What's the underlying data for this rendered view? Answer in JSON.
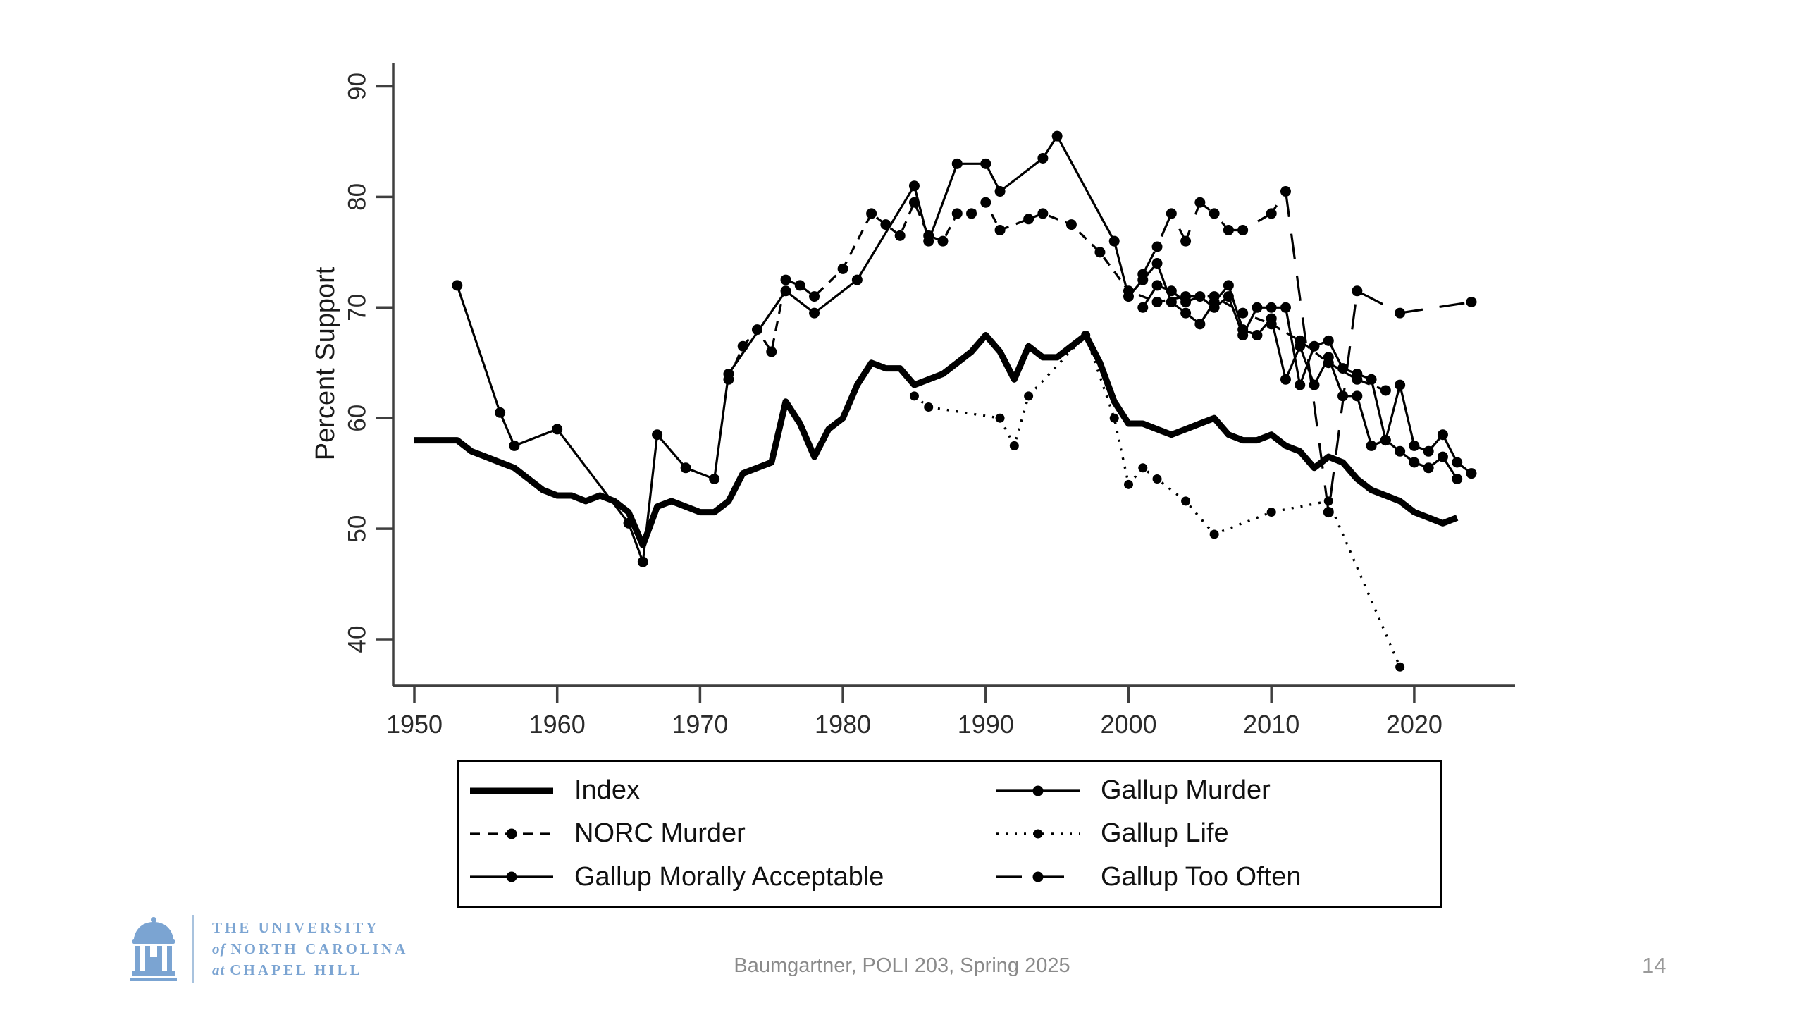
{
  "chart": {
    "ylabel": "Percent Support",
    "y_ticks": [
      40,
      50,
      60,
      70,
      80,
      90
    ],
    "x_ticks": [
      1950,
      1960,
      1970,
      1980,
      1990,
      2000,
      2010,
      2020
    ],
    "axis_color": "#3f3f3f",
    "series_color": "#000000"
  },
  "chart_data": {
    "type": "line",
    "title": "",
    "xlabel": "",
    "ylabel": "Percent Support",
    "xlim": [
      1948.5,
      2027.5
    ],
    "ylim": [
      36.5,
      91.5
    ],
    "x_ticks": [
      1950,
      1960,
      1970,
      1980,
      1990,
      2000,
      2010,
      2020
    ],
    "y_ticks": [
      40,
      50,
      60,
      70,
      80,
      90
    ],
    "grid": false,
    "legend_position": "bottom",
    "series": [
      {
        "name": "Index",
        "style": "thick-solid",
        "markers": false,
        "points": [
          [
            1950,
            58
          ],
          [
            1951,
            58
          ],
          [
            1952,
            58
          ],
          [
            1953,
            58
          ],
          [
            1954,
            57
          ],
          [
            1955,
            56.5
          ],
          [
            1956,
            56
          ],
          [
            1957,
            55.5
          ],
          [
            1958,
            54.5
          ],
          [
            1959,
            53.5
          ],
          [
            1960,
            53
          ],
          [
            1961,
            53
          ],
          [
            1962,
            52.5
          ],
          [
            1963,
            53
          ],
          [
            1964,
            52.5
          ],
          [
            1965,
            51.5
          ],
          [
            1966,
            48.5
          ],
          [
            1967,
            52
          ],
          [
            1968,
            52.5
          ],
          [
            1969,
            52
          ],
          [
            1970,
            51.5
          ],
          [
            1971,
            51.5
          ],
          [
            1972,
            52.5
          ],
          [
            1973,
            55
          ],
          [
            1974,
            55.5
          ],
          [
            1975,
            56
          ],
          [
            1976,
            61.5
          ],
          [
            1977,
            59.5
          ],
          [
            1978,
            56.5
          ],
          [
            1979,
            59
          ],
          [
            1980,
            60
          ],
          [
            1981,
            63
          ],
          [
            1982,
            65
          ],
          [
            1983,
            64.5
          ],
          [
            1984,
            64.5
          ],
          [
            1985,
            63
          ],
          [
            1986,
            63.5
          ],
          [
            1987,
            64
          ],
          [
            1988,
            65
          ],
          [
            1989,
            66
          ],
          [
            1990,
            67.5
          ],
          [
            1991,
            66
          ],
          [
            1992,
            63.5
          ],
          [
            1993,
            66.5
          ],
          [
            1994,
            65.5
          ],
          [
            1995,
            65.5
          ],
          [
            1996,
            66.5
          ],
          [
            1997,
            67.5
          ],
          [
            1998,
            65
          ],
          [
            1999,
            61.5
          ],
          [
            2000,
            59.5
          ],
          [
            2001,
            59.5
          ],
          [
            2002,
            59
          ],
          [
            2003,
            58.5
          ],
          [
            2004,
            59
          ],
          [
            2005,
            59.5
          ],
          [
            2006,
            60
          ],
          [
            2007,
            58.5
          ],
          [
            2008,
            58
          ],
          [
            2009,
            58
          ],
          [
            2010,
            58.5
          ],
          [
            2011,
            57.5
          ],
          [
            2012,
            57
          ],
          [
            2013,
            55.5
          ],
          [
            2014,
            56.5
          ],
          [
            2015,
            56
          ],
          [
            2016,
            54.5
          ],
          [
            2017,
            53.5
          ],
          [
            2018,
            53
          ],
          [
            2019,
            52.5
          ],
          [
            2020,
            51.5
          ],
          [
            2021,
            51
          ],
          [
            2022,
            50.5
          ],
          [
            2023,
            51
          ]
        ]
      },
      {
        "name": "NORC Murder",
        "style": "dashed",
        "markers": true,
        "points": [
          [
            1972,
            63.5
          ],
          [
            1973,
            66.5
          ],
          [
            1974,
            68
          ],
          [
            1975,
            66
          ],
          [
            1976,
            72.5
          ],
          [
            1977,
            72
          ],
          [
            1978,
            71
          ],
          [
            1980,
            73.5
          ],
          [
            1982,
            78.5
          ],
          [
            1983,
            77.5
          ],
          [
            1984,
            76.5
          ],
          [
            1985,
            79.5
          ],
          [
            1986,
            76.5
          ],
          [
            1987,
            76
          ],
          [
            1988,
            78.5
          ],
          [
            1989,
            78.5
          ],
          [
            1990,
            79.5
          ],
          [
            1991,
            77
          ],
          [
            1993,
            78
          ],
          [
            1994,
            78.5
          ],
          [
            1996,
            77.5
          ],
          [
            1998,
            75
          ],
          [
            2000,
            71.5
          ],
          [
            2002,
            70.5
          ],
          [
            2004,
            71
          ],
          [
            2006,
            71
          ],
          [
            2008,
            69.5
          ],
          [
            2010,
            68.5
          ],
          [
            2012,
            67
          ],
          [
            2014,
            65
          ],
          [
            2016,
            63.5
          ],
          [
            2018,
            62.5
          ]
        ]
      },
      {
        "name": "Gallup Morally Acceptable",
        "style": "thin-solid",
        "markers": true,
        "points": [
          [
            2001,
            70
          ],
          [
            2002,
            72
          ],
          [
            2003,
            71.5
          ],
          [
            2004,
            70.5
          ],
          [
            2005,
            71
          ],
          [
            2006,
            70
          ],
          [
            2007,
            71
          ],
          [
            2008,
            67.5
          ],
          [
            2009,
            70
          ],
          [
            2010,
            70
          ],
          [
            2011,
            70
          ],
          [
            2012,
            63
          ],
          [
            2013,
            66.5
          ],
          [
            2014,
            67
          ],
          [
            2015,
            64.5
          ],
          [
            2016,
            64
          ],
          [
            2017,
            63.5
          ],
          [
            2018,
            58
          ],
          [
            2019,
            63
          ],
          [
            2020,
            57.5
          ],
          [
            2021,
            57
          ],
          [
            2022,
            58.5
          ],
          [
            2023,
            56
          ],
          [
            2024,
            55
          ]
        ]
      },
      {
        "name": "Gallup Murder",
        "style": "thin-solid",
        "markers": true,
        "points": [
          [
            1953,
            72
          ],
          [
            1956,
            60.5
          ],
          [
            1957,
            57.5
          ],
          [
            1960,
            59
          ],
          [
            1965,
            50.5
          ],
          [
            1966,
            47
          ],
          [
            1967,
            58.5
          ],
          [
            1969,
            55.5
          ],
          [
            1971,
            54.5
          ],
          [
            1972,
            64
          ],
          [
            1976,
            71.5
          ],
          [
            1978,
            69.5
          ],
          [
            1981,
            72.5
          ],
          [
            1985,
            81
          ],
          [
            1986,
            76
          ],
          [
            1988,
            83
          ],
          [
            1990,
            83
          ],
          [
            1991,
            80.5
          ],
          [
            1994,
            83.5
          ],
          [
            1995,
            85.5
          ],
          [
            1999,
            76
          ],
          [
            2000,
            71
          ],
          [
            2001,
            72.5
          ],
          [
            2002,
            74
          ],
          [
            2003,
            70.5
          ],
          [
            2004,
            69.5
          ],
          [
            2005,
            68.5
          ],
          [
            2006,
            70.5
          ],
          [
            2007,
            72
          ],
          [
            2008,
            68
          ],
          [
            2009,
            67.5
          ],
          [
            2010,
            69
          ],
          [
            2011,
            63.5
          ],
          [
            2012,
            66.5
          ],
          [
            2013,
            63
          ],
          [
            2014,
            65.5
          ],
          [
            2015,
            62
          ],
          [
            2016,
            62
          ],
          [
            2017,
            57.5
          ],
          [
            2018,
            58
          ],
          [
            2019,
            57
          ],
          [
            2020,
            56
          ],
          [
            2021,
            55.5
          ],
          [
            2022,
            56.5
          ],
          [
            2023,
            54.5
          ]
        ]
      },
      {
        "name": "Gallup Life",
        "style": "dotted",
        "markers": true,
        "points": [
          [
            1985,
            62
          ],
          [
            1986,
            61
          ],
          [
            1991,
            60
          ],
          [
            1992,
            57.5
          ],
          [
            1993,
            62
          ],
          [
            1997,
            67.5
          ],
          [
            1999,
            60
          ],
          [
            2000,
            54
          ],
          [
            2001,
            55.5
          ],
          [
            2002,
            54.5
          ],
          [
            2004,
            52.5
          ],
          [
            2006,
            49.5
          ],
          [
            2010,
            51.5
          ],
          [
            2014,
            52.5
          ],
          [
            2019,
            37.5
          ]
        ]
      },
      {
        "name": "Gallup Too Often",
        "style": "long-dash",
        "markers": true,
        "points": [
          [
            2001,
            73
          ],
          [
            2002,
            75.5
          ],
          [
            2003,
            78.5
          ],
          [
            2004,
            76
          ],
          [
            2005,
            79.5
          ],
          [
            2006,
            78.5
          ],
          [
            2007,
            77
          ],
          [
            2008,
            77
          ],
          [
            2010,
            78.5
          ],
          [
            2011,
            80.5
          ],
          [
            2014,
            51.5
          ],
          [
            2016,
            71.5
          ],
          [
            2019,
            69.5
          ],
          [
            2024,
            70.5
          ]
        ]
      }
    ]
  },
  "legend": {
    "items": [
      {
        "label": "Index",
        "style": "thick-solid",
        "marker": false
      },
      {
        "label": "NORC Murder",
        "style": "dashed",
        "marker": true
      },
      {
        "label": "Gallup Morally Acceptable",
        "style": "thin-solid",
        "marker": true
      },
      {
        "label": "Gallup Murder",
        "style": "thin-solid",
        "marker": true
      },
      {
        "label": "Gallup Life",
        "style": "dotted",
        "marker": true
      },
      {
        "label": "Gallup Too Often",
        "style": "long-dash",
        "marker": true
      }
    ]
  },
  "footer": {
    "credit": "Baumgartner, POLI 203, Spring 2025",
    "page": "14",
    "logo": {
      "color": "#7ba4d2",
      "lines": [
        {
          "prefix": "",
          "text": "THE UNIVERSITY"
        },
        {
          "prefix": "of",
          "text": "NORTH CAROLINA"
        },
        {
          "prefix": "at",
          "text": "CHAPEL HILL"
        }
      ]
    }
  }
}
